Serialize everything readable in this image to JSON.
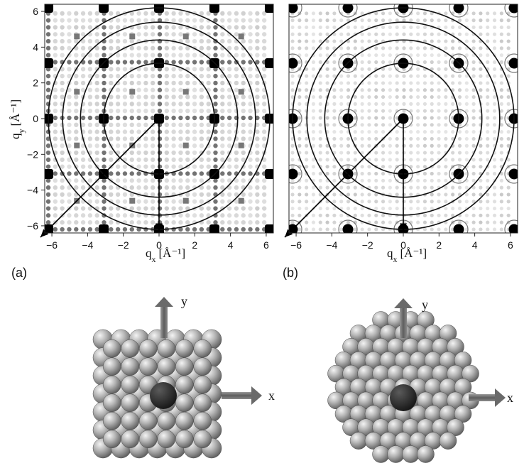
{
  "panels": [
    {
      "id": "a",
      "label": "(a)",
      "x_label": "q",
      "x_sub": "x",
      "x_unit": "[Å⁻¹]",
      "y_label": "q",
      "y_sub": "y",
      "y_unit": "[Å⁻¹]",
      "x_ticks": [
        "−6",
        "−4",
        "−2",
        "0",
        "2",
        "4",
        "6"
      ],
      "y_ticks": [
        "6",
        "4",
        "2",
        "0",
        "−2",
        "−4",
        "−6"
      ],
      "lattice": "square",
      "bragg_spacing": 3.1,
      "ring_radii": [
        3.1,
        4.4,
        5.4,
        6.2
      ]
    },
    {
      "id": "b",
      "label": "(b)",
      "x_label": "q",
      "x_sub": "x",
      "x_unit": "[Å⁻¹]",
      "x_ticks": [
        "−6",
        "−4",
        "−2",
        "0",
        "2",
        "4",
        "6"
      ],
      "lattice": "square",
      "bragg_spacing": 3.1,
      "ring_radii": [
        3.1,
        4.4,
        5.4,
        6.2
      ]
    }
  ],
  "axis_range": [
    -6.4,
    6.4
  ],
  "clusters": [
    {
      "id": "cube",
      "shape": "cube",
      "x_arrow_label": "x",
      "y_arrow_label": "y"
    },
    {
      "id": "sphere",
      "shape": "sphere",
      "x_arrow_label": "x",
      "y_arrow_label": "y"
    }
  ],
  "colors": {
    "spot": "#000000",
    "ring": "#111111",
    "atom": "#9a9a9a",
    "center_atom": "#2e2e2e",
    "arrow": "#6e6e6e"
  }
}
